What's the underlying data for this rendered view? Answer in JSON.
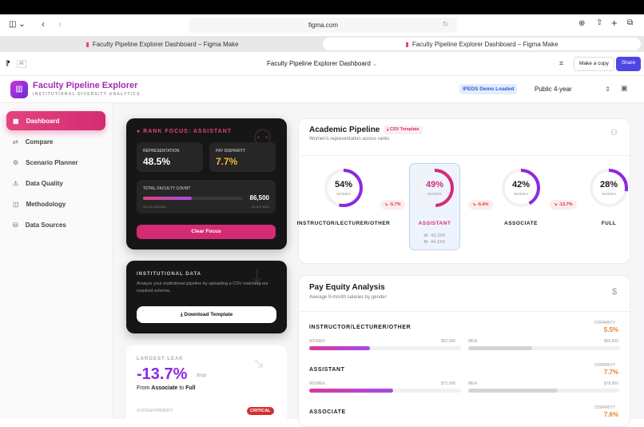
{
  "browser": {
    "url": "figma.com",
    "tabs": [
      "Faculty Pipeline Explorer Dashboard – Figma Make",
      "Faculty Pipeline Explorer Dashboard – Figma Make"
    ]
  },
  "figma": {
    "file_title": "Faculty Pipeline Explorer Dashboard",
    "ai_label": "AI",
    "make_copy": "Make a copy",
    "share": "Share"
  },
  "app": {
    "title": "Faculty Pipeline Explorer",
    "subtitle": "INSTITUTIONAL DIVERSITY ANALYTICS",
    "status_badge": "IPEDS Demo Loaded",
    "sector_select": "Public 4-year"
  },
  "sidebar": {
    "items": [
      {
        "label": "Dashboard",
        "icon": "grid-icon",
        "active": true
      },
      {
        "label": "Compare",
        "icon": "arrows-icon"
      },
      {
        "label": "Scenario Planner",
        "icon": "gear-icon"
      },
      {
        "label": "Data Quality",
        "icon": "warning-icon"
      },
      {
        "label": "Methodology",
        "icon": "book-icon"
      },
      {
        "label": "Data Sources",
        "icon": "database-icon"
      }
    ]
  },
  "focus": {
    "title": "RANK FOCUS: ASSISTANT",
    "rep_label": "REPRESENTATION",
    "rep_value": "48.5%",
    "pay_label": "PAY DISPARITY",
    "pay_value": "7.7%",
    "count_label": "TOTAL FACULTY COUNT",
    "count_value": "86,500",
    "women": "42,000 WOMEN",
    "men": "44,500 MEN",
    "women_fraction": 0.485,
    "clear": "Clear Focus"
  },
  "institutional": {
    "title": "INSTITUTIONAL DATA",
    "desc": "Analyze your institutional pipeline by uploading a CSV matching our required schema.",
    "button": "Download Template"
  },
  "leak": {
    "title": "LARGEST LEAK",
    "value": "-13.7%",
    "unit": "drop",
    "from_pre": "From",
    "from": "Associate",
    "to_pre": "to",
    "to": "Full",
    "priority_label": "SYSTEM PRIORITY",
    "priority": "CRITICAL"
  },
  "pipeline": {
    "title": "Academic Pipeline",
    "csv": "CSV Template",
    "subtitle": "Women's representation across ranks",
    "women_label": "WOMEN",
    "ranks": [
      {
        "name": "INSTRUCTOR/LECTURER/OTHER",
        "pct": 54,
        "label": "54%"
      },
      {
        "name": "ASSISTANT",
        "pct": 49,
        "label": "49%",
        "w": "W: 42,000",
        "m": "M: 44,500",
        "selected": true
      },
      {
        "name": "ASSOCIATE",
        "pct": 42,
        "label": "42%"
      },
      {
        "name": "FULL",
        "pct": 28,
        "label": "28%"
      }
    ],
    "drops": [
      "-5.7%",
      "-6.4%",
      "-13.7%"
    ]
  },
  "pay": {
    "title": "Pay Equity Analysis",
    "subtitle": "Average 9-month salaries by gender",
    "disparity_label": "DISPARITY",
    "women_label": "WOMEN",
    "men_label": "MEN",
    "rows": [
      {
        "rank": "INSTRUCTOR/LECTURER/OTHER",
        "disparity": "5.5%",
        "women": "$52,000",
        "men": "$55,000",
        "wf": 0.4,
        "mf": 0.42
      },
      {
        "rank": "ASSISTANT",
        "disparity": "7.7%",
        "women": "$72,000",
        "men": "$78,000",
        "wf": 0.55,
        "mf": 0.59
      },
      {
        "rank": "ASSOCIATE",
        "disparity": "7.6%"
      }
    ]
  },
  "colors": {
    "accent": "#d42c74",
    "purple": "#8b2be2",
    "share": "#4f46e5",
    "disparity": "#e0832a"
  }
}
